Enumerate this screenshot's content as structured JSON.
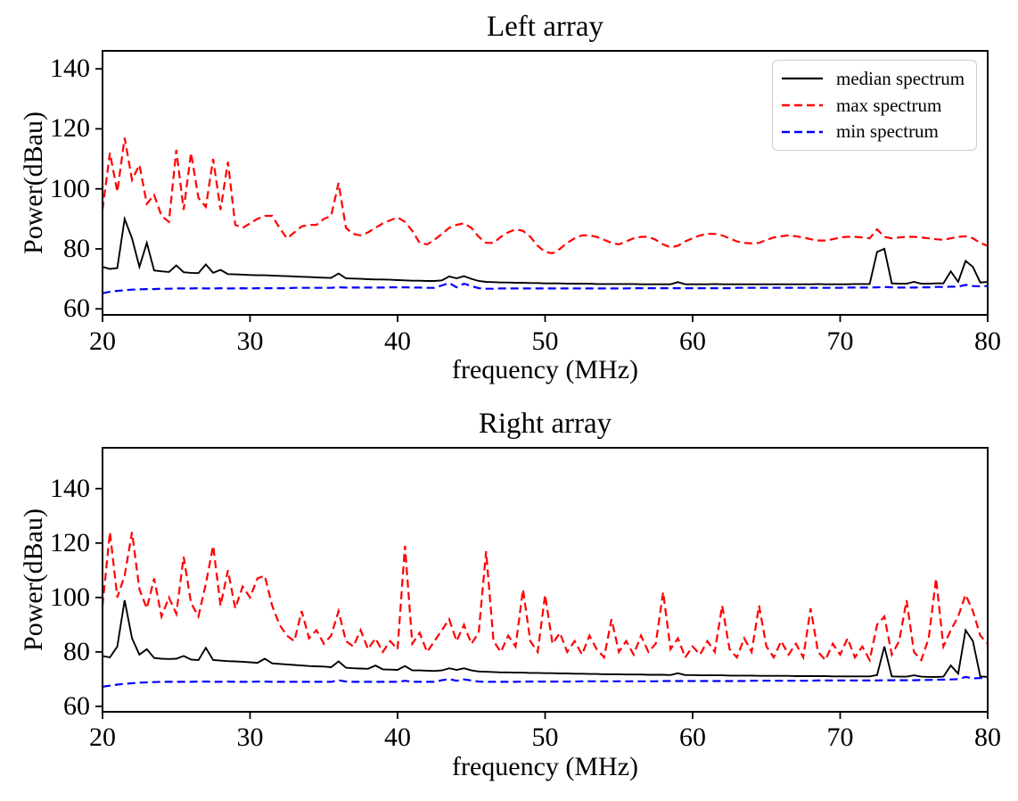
{
  "figure_title": "",
  "legend": {
    "position": "upper right",
    "entries": [
      "median spectrum",
      "max spectrum",
      "min spectrum"
    ]
  },
  "colors": {
    "median": "#000000",
    "max": "#ff0000",
    "min": "#0000ff",
    "frame": "#000000",
    "legend_border": "#cccccc",
    "background": "#ffffff"
  },
  "chart_data": [
    {
      "type": "line",
      "title": "Left array",
      "xlabel": "frequency (MHz)",
      "ylabel": "Power(dBau)",
      "xlim": [
        20,
        80
      ],
      "ylim": [
        58,
        146
      ],
      "xticks": [
        20,
        30,
        40,
        50,
        60,
        70,
        80
      ],
      "yticks": [
        60,
        80,
        100,
        120,
        140
      ],
      "grid": false,
      "legend_shown": true,
      "x_start": 20,
      "x_step": 0.5,
      "x_unit": "MHz",
      "y_unit": "dBau",
      "series": [
        {
          "name": "median spectrum",
          "color": "#000000",
          "style": "solid",
          "values": [
            74,
            73.3,
            73.6,
            90,
            83.5,
            74,
            82,
            72.8,
            72.5,
            72.3,
            74.5,
            72.2,
            72,
            71.9,
            74.8,
            72,
            73,
            71.6,
            71.5,
            71.4,
            71.3,
            71.2,
            71.2,
            71.1,
            71,
            70.9,
            70.8,
            70.7,
            70.6,
            70.5,
            70.4,
            70.3,
            71.8,
            70.2,
            70.1,
            70,
            69.9,
            69.8,
            69.8,
            69.7,
            69.6,
            69.5,
            69.4,
            69.4,
            69.3,
            69.3,
            69.5,
            70.8,
            70.2,
            70.9,
            70,
            69.3,
            69,
            68.9,
            68.8,
            68.8,
            68.7,
            68.7,
            68.6,
            68.6,
            68.5,
            68.5,
            68.5,
            68.4,
            68.4,
            68.4,
            68.4,
            68.3,
            68.3,
            68.3,
            68.3,
            68.3,
            68.3,
            68.2,
            68.2,
            68.2,
            68.2,
            68.2,
            68.9,
            68.2,
            68.2,
            68.2,
            68.2,
            68.3,
            68.2,
            68.2,
            68.2,
            68.2,
            68.2,
            68.2,
            68.2,
            68.2,
            68.2,
            68.2,
            68.2,
            68.2,
            68.2,
            68.3,
            68.2,
            68.2,
            68.2,
            68.2,
            68.3,
            68.3,
            68.3,
            79,
            80,
            68.5,
            68.4,
            68.4,
            69,
            68.4,
            68.4,
            68.5,
            68.5,
            72.5,
            69,
            76,
            74,
            68.8,
            69
          ]
        },
        {
          "name": "max spectrum",
          "color": "#ff0000",
          "style": "dashed",
          "values": [
            93,
            112,
            99,
            117,
            103,
            108,
            95,
            98,
            91,
            89,
            113,
            93,
            112,
            97,
            94,
            110,
            93,
            109,
            88,
            87,
            88.5,
            90,
            91,
            91,
            87,
            83.5,
            85.5,
            87.5,
            88,
            88,
            90,
            91,
            102,
            87,
            85,
            84.5,
            85.5,
            87,
            88.5,
            89.5,
            90.5,
            89,
            86,
            82,
            81.5,
            83,
            85,
            87,
            88,
            88.5,
            87,
            84,
            82,
            82,
            84,
            85.5,
            86.5,
            86,
            84,
            81,
            79,
            78.5,
            80,
            82,
            83.5,
            84.5,
            84.5,
            84,
            83,
            82,
            81.5,
            82.5,
            83.5,
            84,
            84,
            83,
            81.5,
            80.5,
            81,
            82.5,
            83.5,
            84.5,
            85,
            85,
            84.5,
            83.5,
            82.5,
            82,
            81.8,
            82,
            83,
            83.8,
            84.2,
            84.5,
            84.2,
            83.8,
            83.2,
            82.8,
            82.8,
            83.2,
            83.8,
            84,
            84,
            83.8,
            83.5,
            86.5,
            84,
            83.5,
            83.8,
            84,
            84,
            83.8,
            83.5,
            83.2,
            83,
            83.5,
            84,
            84.2,
            83.5,
            82,
            81
          ]
        },
        {
          "name": "min spectrum",
          "color": "#0000ff",
          "style": "dashed",
          "values": [
            65.2,
            65.7,
            66,
            66.2,
            66.4,
            66.5,
            66.6,
            66.6,
            66.7,
            66.7,
            66.8,
            66.8,
            66.8,
            66.9,
            66.8,
            66.8,
            66.9,
            66.8,
            66.8,
            66.9,
            66.8,
            66.9,
            66.9,
            66.9,
            66.9,
            66.9,
            67,
            67,
            67,
            67,
            67,
            67,
            67.2,
            67.1,
            67.1,
            67.1,
            67.1,
            67.1,
            67.1,
            67.2,
            67.2,
            67.2,
            67.1,
            67.1,
            67,
            67,
            67.8,
            68.6,
            67.2,
            68.4,
            67.6,
            66.9,
            66.7,
            66.7,
            66.8,
            66.8,
            66.8,
            66.8,
            66.8,
            66.8,
            66.8,
            66.8,
            66.8,
            66.8,
            66.8,
            66.8,
            66.8,
            66.8,
            66.8,
            66.8,
            66.8,
            66.8,
            66.9,
            66.9,
            66.9,
            66.9,
            66.9,
            66.9,
            66.9,
            66.9,
            66.9,
            66.9,
            66.9,
            66.9,
            66.9,
            66.9,
            67,
            67,
            67,
            67,
            67,
            67,
            67,
            67,
            67,
            67,
            67,
            67,
            67,
            67,
            67,
            67.1,
            67.1,
            67.1,
            67.1,
            67.2,
            67.3,
            67.2,
            67.1,
            67.1,
            67.1,
            67.2,
            67.2,
            67.3,
            67.3,
            67.4,
            67.4,
            68,
            67.6,
            67.5,
            67.6
          ]
        }
      ]
    },
    {
      "type": "line",
      "title": "Right array",
      "xlabel": "frequency (MHz)",
      "ylabel": "Power(dBau)",
      "xlim": [
        20,
        80
      ],
      "ylim": [
        58,
        155
      ],
      "xticks": [
        20,
        30,
        40,
        50,
        60,
        70,
        80
      ],
      "yticks": [
        60,
        80,
        100,
        120,
        140
      ],
      "grid": false,
      "legend_shown": false,
      "x_start": 20,
      "x_step": 0.5,
      "x_unit": "MHz",
      "y_unit": "dBau",
      "series": [
        {
          "name": "median spectrum",
          "color": "#000000",
          "style": "solid",
          "values": [
            78.5,
            78,
            82,
            99,
            85,
            79,
            81,
            77.8,
            77.5,
            77.4,
            77.5,
            78.5,
            77.2,
            77,
            81.5,
            77,
            76.8,
            76.6,
            76.5,
            76.4,
            76.2,
            76,
            77.5,
            75.8,
            75.6,
            75.4,
            75.2,
            75,
            74.8,
            74.7,
            74.6,
            74.4,
            76.5,
            74.2,
            74,
            73.9,
            73.8,
            75,
            73.6,
            73.5,
            73.4,
            74.8,
            73.2,
            73.2,
            73.1,
            73,
            73.2,
            74,
            73.4,
            74,
            73.2,
            72.8,
            72.7,
            72.6,
            72.5,
            72.5,
            72.4,
            72.4,
            72.3,
            72.3,
            72.2,
            72.2,
            72.1,
            72.1,
            72,
            72,
            71.9,
            71.9,
            71.8,
            71.8,
            71.8,
            71.7,
            71.7,
            71.7,
            71.6,
            71.6,
            71.6,
            71.5,
            72.2,
            71.5,
            71.5,
            71.4,
            71.4,
            71.4,
            71.4,
            71.3,
            71.3,
            71.3,
            71.3,
            71.2,
            71.2,
            71.2,
            71.2,
            71.2,
            71.1,
            71.1,
            71.1,
            71.1,
            71.1,
            71,
            71,
            71,
            71,
            71,
            71,
            71.5,
            82,
            71,
            70.9,
            70.9,
            71.4,
            70.9,
            70.8,
            70.8,
            70.9,
            75,
            72,
            88,
            84,
            71,
            70.8
          ]
        },
        {
          "name": "max spectrum",
          "color": "#ff0000",
          "style": "dashed",
          "values": [
            97,
            124,
            100,
            108,
            124,
            103,
            96,
            107,
            93,
            100,
            94,
            115,
            98,
            93,
            105,
            119,
            97,
            110,
            96,
            104,
            100,
            107,
            108,
            97,
            90,
            86,
            84,
            95,
            85,
            88,
            83,
            86,
            95,
            84,
            82,
            88,
            81,
            85,
            80,
            84,
            81,
            119,
            83,
            87,
            80,
            84,
            88,
            92,
            84,
            90,
            83,
            87,
            117,
            84,
            80,
            86,
            82,
            103,
            84,
            80,
            101,
            83,
            87,
            80,
            84,
            79,
            86,
            81,
            78,
            92,
            80,
            84,
            79,
            86,
            80,
            83,
            102,
            81,
            85,
            78,
            82,
            79,
            84,
            80,
            97,
            81,
            78,
            85,
            80,
            97,
            82,
            78,
            84,
            79,
            83,
            78,
            96,
            80,
            77,
            83,
            79,
            85,
            78,
            82,
            77,
            90,
            93,
            79,
            84,
            99,
            80,
            77,
            85,
            107,
            82,
            88,
            93,
            101,
            95,
            86,
            83
          ]
        },
        {
          "name": "min spectrum",
          "color": "#0000ff",
          "style": "dashed",
          "values": [
            67.2,
            67.6,
            68,
            68.3,
            68.5,
            68.7,
            68.8,
            68.9,
            69,
            69,
            69,
            69,
            69,
            69.1,
            69.1,
            69,
            69,
            69.1,
            69,
            69,
            69,
            69.1,
            69.1,
            69,
            69,
            69,
            69,
            69,
            69,
            69,
            69,
            69,
            69.6,
            69.1,
            69,
            69,
            69,
            69,
            69,
            69,
            69,
            69.4,
            69,
            69,
            69,
            69,
            69.6,
            70,
            69.4,
            69.9,
            69.5,
            69.1,
            69,
            69,
            69,
            69,
            69,
            69.1,
            69.1,
            69.1,
            69.1,
            69.1,
            69.1,
            69.1,
            69.1,
            69.2,
            69.2,
            69.2,
            69.2,
            69.2,
            69.2,
            69.2,
            69.2,
            69.2,
            69.2,
            69.2,
            69.3,
            69.3,
            69.3,
            69.3,
            69.3,
            69.3,
            69.3,
            69.3,
            69.3,
            69.3,
            69.3,
            69.3,
            69.4,
            69.4,
            69.4,
            69.4,
            69.4,
            69.4,
            69.4,
            69.4,
            69.4,
            69.5,
            69.5,
            69.5,
            69.5,
            69.5,
            69.5,
            69.5,
            69.5,
            69.5,
            69.6,
            69.6,
            69.6,
            69.6,
            69.6,
            69.7,
            69.7,
            69.8,
            69.8,
            69.9,
            70,
            70.8,
            70.3,
            70.4,
            70.5
          ]
        }
      ]
    }
  ]
}
